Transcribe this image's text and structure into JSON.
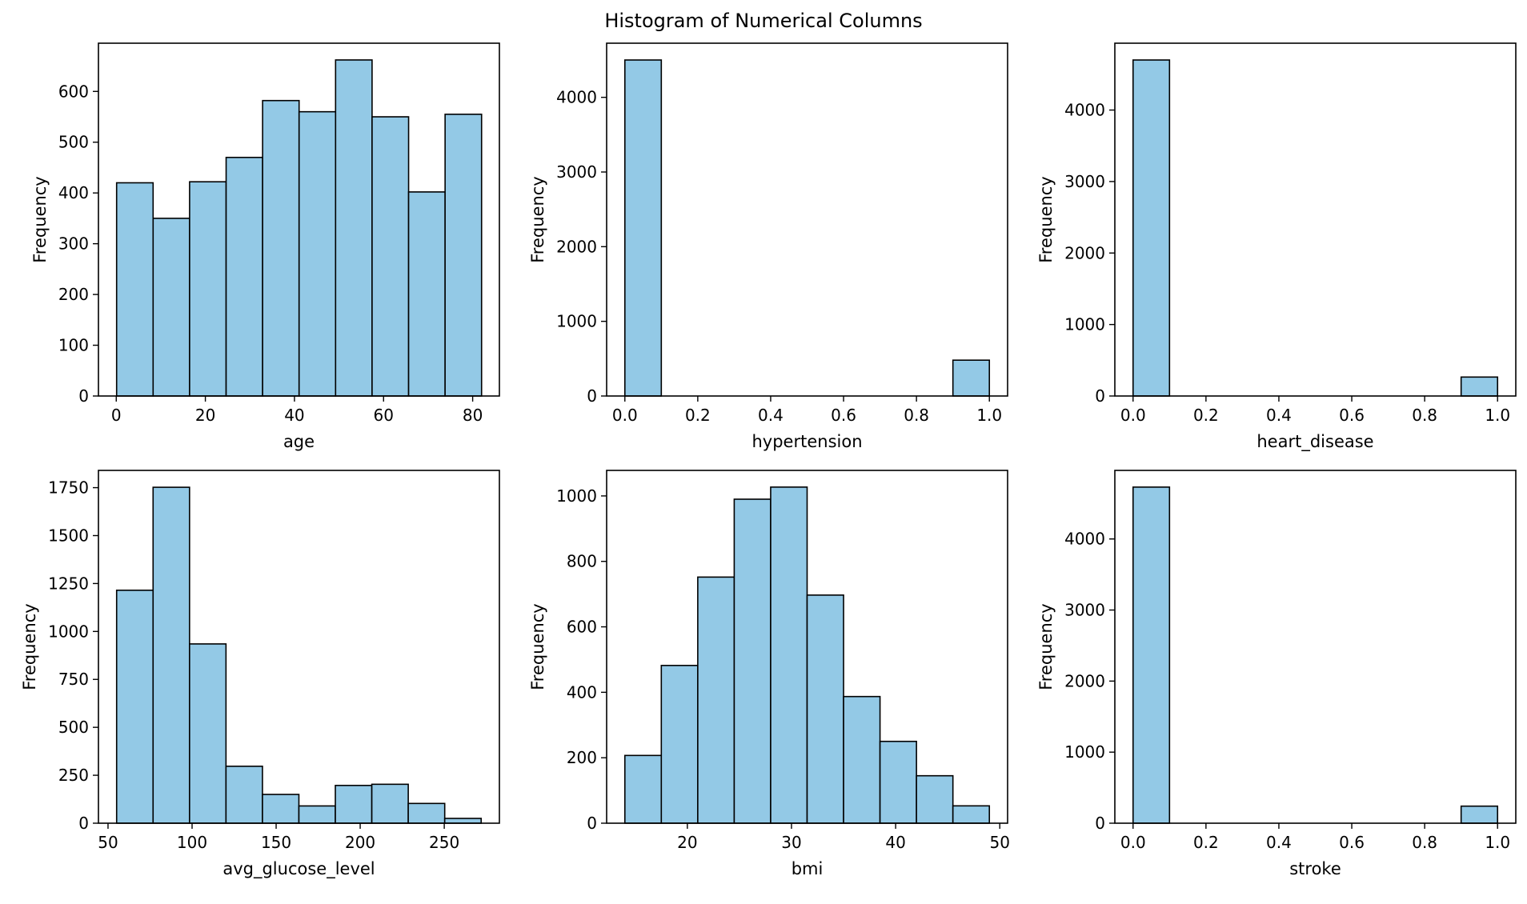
{
  "figure": {
    "title": "Histogram of Numerical Columns"
  },
  "style": {
    "bar_color": "#93c9e6",
    "edge_color": "#000000",
    "background": "#ffffff"
  },
  "chart_data": [
    {
      "type": "bar",
      "subtype": "histogram",
      "xlabel": "age",
      "ylabel": "Frequency",
      "bin_edges": [
        0.08,
        8.27,
        16.46,
        24.66,
        32.85,
        41.04,
        49.23,
        57.42,
        65.62,
        73.81,
        82.0
      ],
      "values": [
        420,
        350,
        422,
        470,
        582,
        560,
        662,
        550,
        402,
        555
      ],
      "xlim": [
        -4,
        86
      ],
      "ylim": [
        0,
        695
      ],
      "xticks": [
        0,
        20,
        40,
        60,
        80
      ],
      "yticks": [
        0,
        100,
        200,
        300,
        400,
        500,
        600
      ],
      "grid": false,
      "legend": "none"
    },
    {
      "type": "bar",
      "subtype": "histogram",
      "xlabel": "hypertension",
      "ylabel": "Frequency",
      "bin_edges": [
        0,
        0.1,
        0.2,
        0.3,
        0.4,
        0.5,
        0.6,
        0.7,
        0.8,
        0.9,
        1.0
      ],
      "values": [
        4500,
        0,
        0,
        0,
        0,
        0,
        0,
        0,
        0,
        480
      ],
      "xlim": [
        -0.05,
        1.05
      ],
      "ylim": [
        0,
        4725
      ],
      "xticks": [
        "0.0",
        "0.2",
        "0.4",
        "0.6",
        "0.8",
        "1.0"
      ],
      "yticks": [
        0,
        1000,
        2000,
        3000,
        4000
      ],
      "grid": false,
      "legend": "none"
    },
    {
      "type": "bar",
      "subtype": "histogram",
      "xlabel": "heart_disease",
      "ylabel": "Frequency",
      "bin_edges": [
        0,
        0.1,
        0.2,
        0.3,
        0.4,
        0.5,
        0.6,
        0.7,
        0.8,
        0.9,
        1.0
      ],
      "values": [
        4700,
        0,
        0,
        0,
        0,
        0,
        0,
        0,
        0,
        265
      ],
      "xlim": [
        -0.05,
        1.05
      ],
      "ylim": [
        0,
        4935
      ],
      "xticks": [
        "0.0",
        "0.2",
        "0.4",
        "0.6",
        "0.8",
        "1.0"
      ],
      "yticks": [
        0,
        1000,
        2000,
        3000,
        4000
      ],
      "grid": false,
      "legend": "none"
    },
    {
      "type": "bar",
      "subtype": "histogram",
      "xlabel": "avg_glucose_level",
      "ylabel": "Frequency",
      "bin_edges": [
        55.12,
        76.8,
        98.49,
        120.17,
        141.86,
        163.54,
        185.22,
        206.91,
        228.59,
        250.28,
        271.96
      ],
      "values": [
        1215,
        1752,
        935,
        297,
        150,
        90,
        197,
        203,
        103,
        25
      ],
      "xlim": [
        44.3,
        282.8
      ],
      "ylim": [
        0,
        1840
      ],
      "xticks": [
        50,
        100,
        150,
        200,
        250
      ],
      "yticks": [
        0,
        250,
        500,
        750,
        1000,
        1250,
        1500,
        1750
      ],
      "grid": false,
      "legend": "none"
    },
    {
      "type": "bar",
      "subtype": "histogram",
      "xlabel": "bmi",
      "ylabel": "Frequency",
      "bin_edges": [
        14,
        17.5,
        21,
        24.5,
        28,
        31.5,
        35,
        38.5,
        42,
        45.5,
        49
      ],
      "values": [
        207,
        482,
        752,
        990,
        1027,
        697,
        387,
        250,
        145,
        53
      ],
      "xlim": [
        12.25,
        50.75
      ],
      "ylim": [
        0,
        1078
      ],
      "xticks": [
        20,
        30,
        40,
        50
      ],
      "yticks": [
        0,
        200,
        400,
        600,
        800,
        1000
      ],
      "grid": false,
      "legend": "none"
    },
    {
      "type": "bar",
      "subtype": "histogram",
      "xlabel": "stroke",
      "ylabel": "Frequency",
      "bin_edges": [
        0,
        0.1,
        0.2,
        0.3,
        0.4,
        0.5,
        0.6,
        0.7,
        0.8,
        0.9,
        1.0
      ],
      "values": [
        4730,
        0,
        0,
        0,
        0,
        0,
        0,
        0,
        0,
        240
      ],
      "xlim": [
        -0.05,
        1.05
      ],
      "ylim": [
        0,
        4965
      ],
      "xticks": [
        "0.0",
        "0.2",
        "0.4",
        "0.6",
        "0.8",
        "1.0"
      ],
      "yticks": [
        0,
        1000,
        2000,
        3000,
        4000
      ],
      "grid": false,
      "legend": "none"
    }
  ]
}
